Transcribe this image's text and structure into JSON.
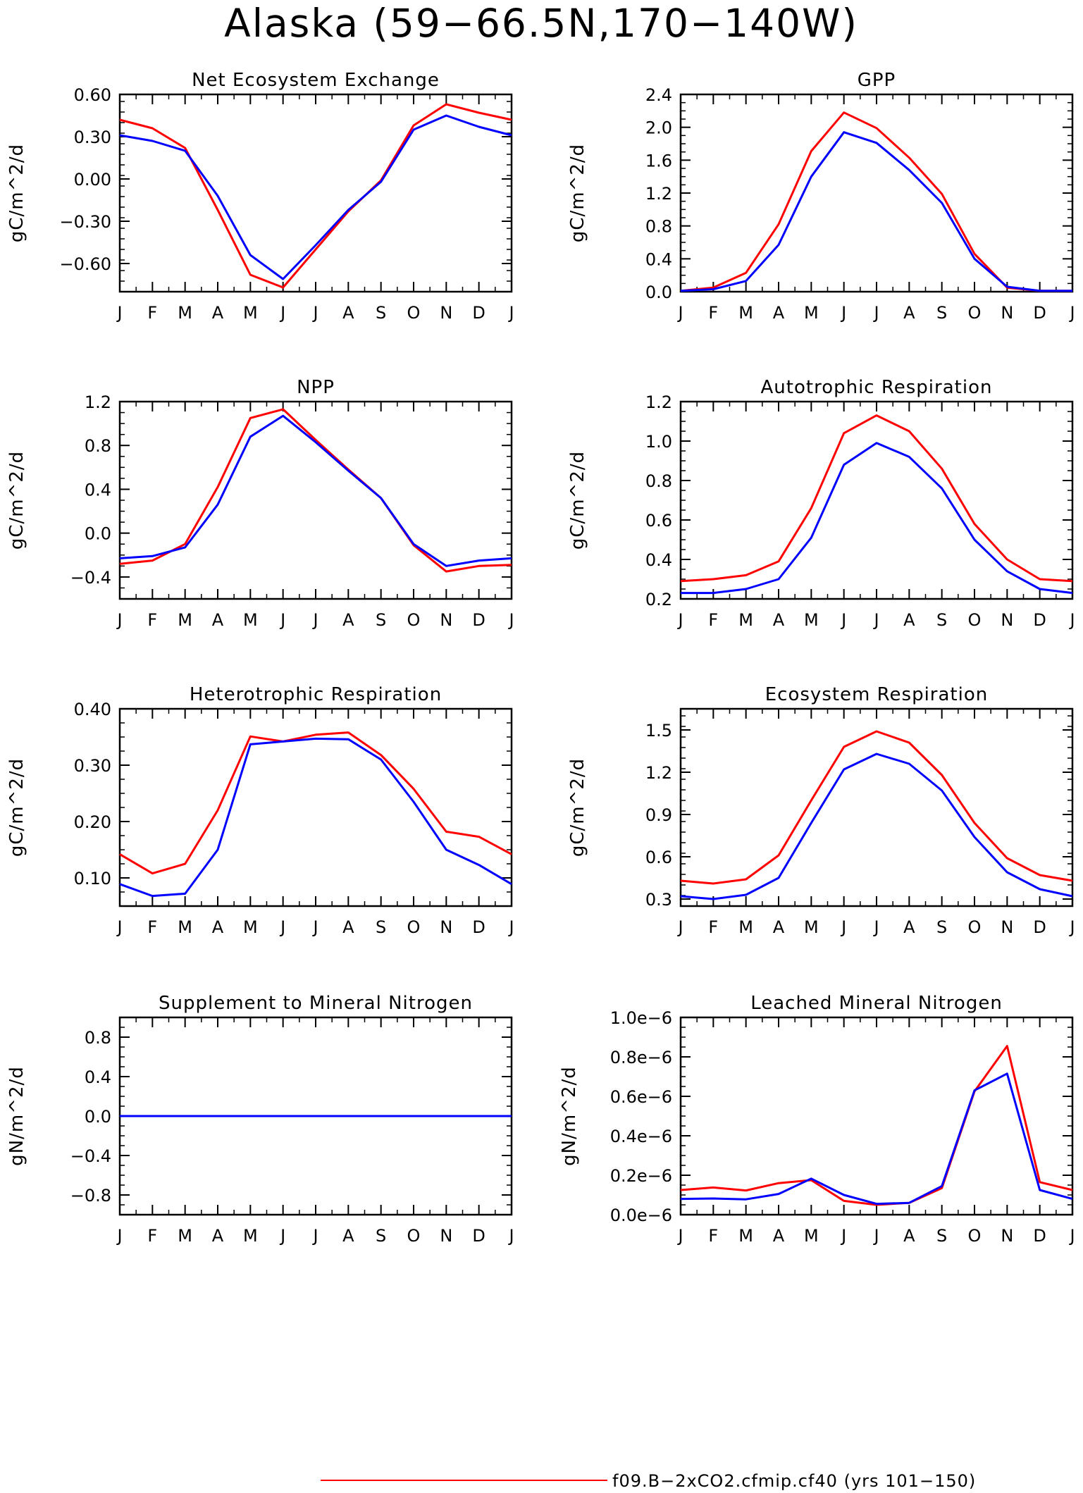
{
  "figure": {
    "title": "Alaska (59−66.5N,170−140W)",
    "legend": [
      {
        "label": "f09.B−2xCO2.cfmip.cf40 (yrs 101−150)",
        "color": "#ff0000"
      }
    ]
  },
  "months": [
    "J",
    "F",
    "M",
    "A",
    "M",
    "J",
    "J",
    "A",
    "S",
    "O",
    "N",
    "D",
    "J"
  ],
  "colors": {
    "series_red": "#ff0000",
    "series_blue": "#0000ff"
  },
  "chart_data": [
    {
      "type": "line",
      "title": "Net Ecosystem Exchange",
      "ylabel": "gC/m^2/d",
      "ylim": [
        -0.8,
        0.6
      ],
      "yticks": [
        0.6,
        0.3,
        0.0,
        -0.3,
        -0.6
      ],
      "ytick_labels": [
        "0.60",
        "0.30",
        "0.00",
        "−0.30",
        "−0.60"
      ],
      "series": [
        {
          "color": "#ff0000",
          "values": [
            0.42,
            0.36,
            0.22,
            -0.22,
            -0.68,
            -0.77,
            -0.5,
            -0.23,
            -0.01,
            0.38,
            0.53,
            0.47,
            0.42
          ]
        },
        {
          "color": "#0000ff",
          "values": [
            0.31,
            0.27,
            0.2,
            -0.12,
            -0.54,
            -0.71,
            -0.47,
            -0.22,
            -0.02,
            0.35,
            0.45,
            0.37,
            0.31
          ]
        }
      ]
    },
    {
      "type": "line",
      "title": "GPP",
      "ylabel": "gC/m^2/d",
      "ylim": [
        0,
        2.4
      ],
      "yticks": [
        2.4,
        2.0,
        1.6,
        1.2,
        0.8,
        0.4,
        0.0
      ],
      "ytick_labels": [
        "2.4",
        "2.0",
        "1.6",
        "1.2",
        "0.8",
        "0.4",
        "0.0"
      ],
      "series": [
        {
          "color": "#ff0000",
          "values": [
            0.01,
            0.05,
            0.23,
            0.82,
            1.71,
            2.18,
            1.99,
            1.63,
            1.19,
            0.46,
            0.05,
            0.01,
            0.01
          ]
        },
        {
          "color": "#0000ff",
          "values": [
            0.01,
            0.03,
            0.13,
            0.57,
            1.4,
            1.94,
            1.81,
            1.48,
            1.08,
            0.4,
            0.06,
            0.01,
            0.01
          ]
        }
      ]
    },
    {
      "type": "line",
      "title": "NPP",
      "ylabel": "gC/m^2/d",
      "ylim": [
        -0.6,
        1.2
      ],
      "yticks": [
        1.2,
        0.8,
        0.4,
        0.0,
        -0.4
      ],
      "ytick_labels": [
        "1.2",
        "0.8",
        "0.4",
        "0.0",
        "−0.4"
      ],
      "series": [
        {
          "color": "#ff0000",
          "values": [
            -0.28,
            -0.25,
            -0.1,
            0.42,
            1.05,
            1.13,
            0.85,
            0.58,
            0.32,
            -0.11,
            -0.35,
            -0.3,
            -0.29
          ]
        },
        {
          "color": "#0000ff",
          "values": [
            -0.23,
            -0.21,
            -0.13,
            0.26,
            0.88,
            1.07,
            0.83,
            0.57,
            0.32,
            -0.1,
            -0.3,
            -0.25,
            -0.23
          ]
        }
      ]
    },
    {
      "type": "line",
      "title": "Autotrophic Respiration",
      "ylabel": "gC/m^2/d",
      "ylim": [
        0.2,
        1.2
      ],
      "yticks": [
        1.2,
        1.0,
        0.8,
        0.6,
        0.4,
        0.2
      ],
      "ytick_labels": [
        "1.2",
        "1.0",
        "0.8",
        "0.6",
        "0.4",
        "0.2"
      ],
      "series": [
        {
          "color": "#ff0000",
          "values": [
            0.29,
            0.3,
            0.32,
            0.39,
            0.66,
            1.04,
            1.13,
            1.05,
            0.86,
            0.58,
            0.4,
            0.3,
            0.29
          ]
        },
        {
          "color": "#0000ff",
          "values": [
            0.23,
            0.23,
            0.25,
            0.3,
            0.51,
            0.88,
            0.99,
            0.92,
            0.76,
            0.5,
            0.34,
            0.25,
            0.23
          ]
        }
      ]
    },
    {
      "type": "line",
      "title": "Heterotrophic Respiration",
      "ylabel": "gC/m^2/d",
      "ylim": [
        0.05,
        0.4
      ],
      "yticks": [
        0.4,
        0.3,
        0.2,
        0.1
      ],
      "ytick_labels": [
        "0.40",
        "0.30",
        "0.20",
        "0.10"
      ],
      "series": [
        {
          "color": "#ff0000",
          "values": [
            0.142,
            0.108,
            0.125,
            0.22,
            0.351,
            0.342,
            0.354,
            0.358,
            0.318,
            0.258,
            0.182,
            0.173,
            0.142
          ]
        },
        {
          "color": "#0000ff",
          "values": [
            0.089,
            0.068,
            0.072,
            0.15,
            0.337,
            0.342,
            0.347,
            0.346,
            0.31,
            0.235,
            0.15,
            0.123,
            0.089
          ]
        }
      ]
    },
    {
      "type": "line",
      "title": "Ecosystem Respiration",
      "ylabel": "gC/m^2/d",
      "ylim": [
        0.25,
        1.65
      ],
      "yticks": [
        1.5,
        1.2,
        0.9,
        0.6,
        0.3
      ],
      "ytick_labels": [
        "1.5",
        "1.2",
        "0.9",
        "0.6",
        "0.3"
      ],
      "series": [
        {
          "color": "#ff0000",
          "values": [
            0.43,
            0.41,
            0.44,
            0.61,
            1.0,
            1.38,
            1.49,
            1.41,
            1.18,
            0.84,
            0.59,
            0.47,
            0.43
          ]
        },
        {
          "color": "#0000ff",
          "values": [
            0.32,
            0.3,
            0.33,
            0.45,
            0.84,
            1.22,
            1.33,
            1.26,
            1.07,
            0.74,
            0.49,
            0.37,
            0.32
          ]
        }
      ]
    },
    {
      "type": "line",
      "title": "Supplement to Mineral Nitrogen",
      "ylabel": "gN/m^2/d",
      "ylim": [
        -1.0,
        1.0
      ],
      "yticks": [
        0.8,
        0.4,
        0.0,
        -0.4,
        -0.8
      ],
      "ytick_labels": [
        "0.8",
        "0.4",
        "0.0",
        "−0.4",
        "−0.8"
      ],
      "series": [
        {
          "color": "#ff0000",
          "values": [
            0,
            0,
            0,
            0,
            0,
            0,
            0,
            0,
            0,
            0,
            0,
            0,
            0
          ]
        },
        {
          "color": "#0000ff",
          "values": [
            0,
            0,
            0,
            0,
            0,
            0,
            0,
            0,
            0,
            0,
            0,
            0,
            0
          ]
        }
      ]
    },
    {
      "type": "line",
      "title": "Leached Mineral Nitrogen",
      "ylabel": "gN/m^2/d",
      "ylim": [
        0,
        1e-06
      ],
      "yticks": [
        1e-06,
        8e-07,
        6e-07,
        4e-07,
        2e-07,
        0.0
      ],
      "ytick_labels": [
        "1.0e−6",
        "0.8e−6",
        "0.6e−6",
        "0.4e−6",
        "0.2e−6",
        "0.0e−6"
      ],
      "series": [
        {
          "color": "#ff0000",
          "values": [
            1.25e-07,
            1.38e-07,
            1.23e-07,
            1.6e-07,
            1.75e-07,
            7e-08,
            5e-08,
            6e-08,
            1.35e-07,
            6.25e-07,
            8.55e-07,
            1.65e-07,
            1.25e-07
          ]
        },
        {
          "color": "#0000ff",
          "values": [
            8e-08,
            8.2e-08,
            7.8e-08,
            1.05e-07,
            1.83e-07,
            1e-07,
            5.5e-08,
            6e-08,
            1.45e-07,
            6.3e-07,
            7.15e-07,
            1.25e-07,
            8e-08
          ]
        }
      ]
    }
  ]
}
